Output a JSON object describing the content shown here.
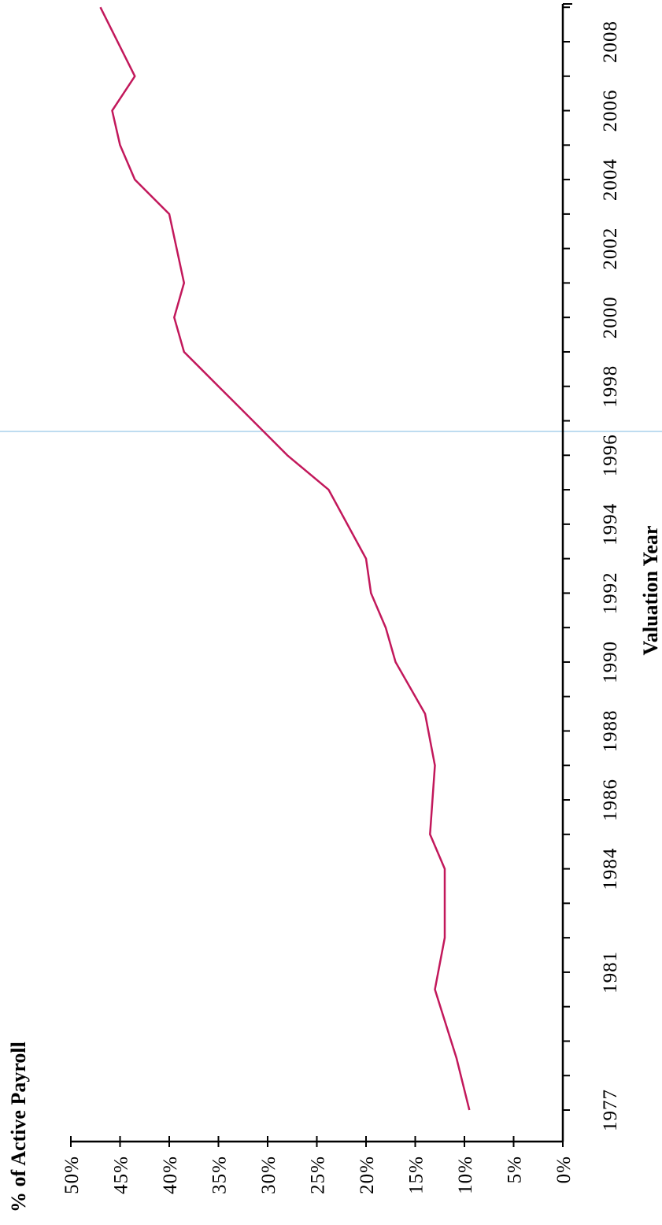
{
  "chart_data": {
    "type": "line",
    "ylabel": "% of Active Payroll",
    "xlabel": "Valuation Year",
    "ylim": [
      0,
      50
    ],
    "y_ticks": [
      "0%",
      "5%",
      "10%",
      "15%",
      "20%",
      "25%",
      "30%",
      "35%",
      "40%",
      "45%",
      "50%"
    ],
    "x_ticks": [
      "1977",
      "1981",
      "1984",
      "1986",
      "1988",
      "1990",
      "1992",
      "1994",
      "1996",
      "1998",
      "2000",
      "2002",
      "2004",
      "2006",
      "2008"
    ],
    "orientation": "rotated 90 degrees counter-clockwise",
    "series": [
      {
        "color": "#c2185b",
        "points": [
          {
            "x": 1977,
            "y": 9.5
          },
          {
            "x": 1978.5,
            "y": 10.8
          },
          {
            "x": 1980.5,
            "y": 13.0
          },
          {
            "x": 1982,
            "y": 12.0
          },
          {
            "x": 1984,
            "y": 12.0
          },
          {
            "x": 1985,
            "y": 13.5
          },
          {
            "x": 1987,
            "y": 13.0
          },
          {
            "x": 1988.5,
            "y": 14.0
          },
          {
            "x": 1990,
            "y": 17.0
          },
          {
            "x": 1991,
            "y": 18.0
          },
          {
            "x": 1992,
            "y": 19.5
          },
          {
            "x": 1993,
            "y": 20.0
          },
          {
            "x": 1995,
            "y": 23.8
          },
          {
            "x": 1996,
            "y": 28.0
          },
          {
            "x": 1997,
            "y": 31.5
          },
          {
            "x": 1998,
            "y": 35.0
          },
          {
            "x": 1999,
            "y": 38.5
          },
          {
            "x": 2000,
            "y": 39.5
          },
          {
            "x": 2001,
            "y": 38.5
          },
          {
            "x": 2003,
            "y": 40.0
          },
          {
            "x": 2004,
            "y": 43.5
          },
          {
            "x": 2005,
            "y": 45.0
          },
          {
            "x": 2006,
            "y": 45.8
          },
          {
            "x": 2007,
            "y": 43.5
          },
          {
            "x": 2009,
            "y": 47.0
          }
        ]
      }
    ]
  }
}
